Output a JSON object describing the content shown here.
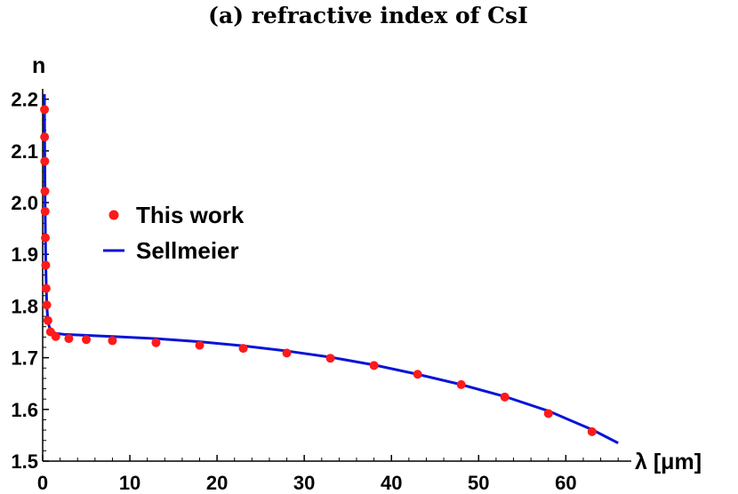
{
  "chart_data": {
    "type": "scatter",
    "title": "(a) refractive index of CsI",
    "xlabel": "λ [μm]",
    "ylabel": "n",
    "xlim": [
      0,
      67
    ],
    "ylim": [
      1.5,
      2.22
    ],
    "xticks": [
      0,
      10,
      20,
      30,
      40,
      50,
      60
    ],
    "xtick_labels": [
      "0",
      "10",
      "20",
      "30",
      "40",
      "50",
      "60"
    ],
    "yticks": [
      1.5,
      1.6,
      1.7,
      1.8,
      1.9,
      2.0,
      2.1,
      2.2
    ],
    "ytick_labels": [
      "1.5",
      "1.6",
      "1.7",
      "1.8",
      "1.9",
      "2.0",
      "2.1",
      "2.2"
    ],
    "legend_position": "left-middle",
    "grid": false,
    "colors": {
      "points": "#ff1a1a",
      "line": "#0a14d6",
      "axis": "#000000"
    },
    "series": [
      {
        "name": "This work",
        "type": "scatter",
        "x": [
          0.21,
          0.22,
          0.24,
          0.26,
          0.28,
          0.31,
          0.35,
          0.4,
          0.47,
          0.6,
          0.9,
          1.5,
          3,
          5,
          8,
          13,
          18,
          23,
          28,
          33,
          38,
          43,
          48,
          53,
          58,
          63
        ],
        "y": [
          2.18,
          2.127,
          2.08,
          2.022,
          1.983,
          1.932,
          1.879,
          1.834,
          1.802,
          1.772,
          1.75,
          1.741,
          1.737,
          1.735,
          1.733,
          1.729,
          1.724,
          1.718,
          1.709,
          1.699,
          1.685,
          1.668,
          1.648,
          1.624,
          1.592,
          1.557
        ]
      },
      {
        "name": "Sellmeier",
        "type": "line",
        "x": [
          0.2,
          0.22,
          0.25,
          0.28,
          0.32,
          0.36,
          0.4,
          0.45,
          0.5,
          0.6,
          0.75,
          1.0,
          1.5,
          2.5,
          4,
          8,
          13,
          18,
          23,
          28,
          33,
          38,
          43,
          48,
          53,
          58,
          63,
          66
        ],
        "y": [
          2.21,
          2.14,
          2.06,
          1.99,
          1.93,
          1.88,
          1.845,
          1.815,
          1.795,
          1.772,
          1.76,
          1.752,
          1.747,
          1.745,
          1.744,
          1.741,
          1.737,
          1.731,
          1.723,
          1.713,
          1.701,
          1.686,
          1.668,
          1.648,
          1.625,
          1.597,
          1.561,
          1.535
        ]
      }
    ]
  }
}
